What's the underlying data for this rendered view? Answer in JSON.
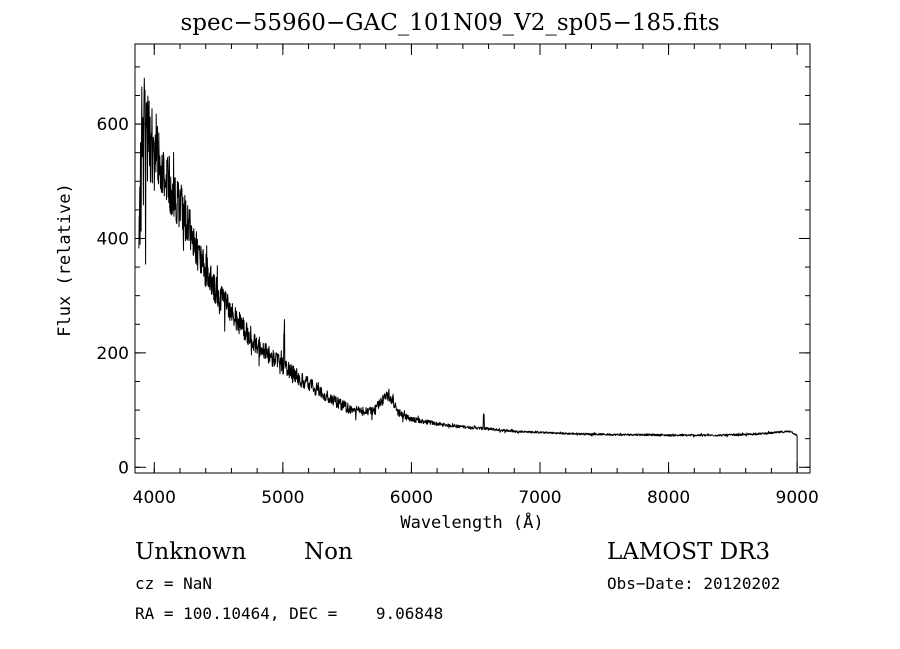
{
  "chart_data": {
    "type": "line",
    "title": "spec−55960−GAC_101N09_V2_sp05−185.fits",
    "xlabel": "Wavelength (Å)",
    "ylabel": "Flux (relative)",
    "xlim": [
      3850,
      9100
    ],
    "ylim": [
      -10,
      740
    ],
    "x_major_ticks": [
      4000,
      5000,
      6000,
      7000,
      8000,
      9000
    ],
    "x_minor_step": 200,
    "y_major_ticks": [
      0,
      200,
      400,
      600
    ],
    "y_minor_step": 50,
    "grid": false,
    "series": [
      {
        "color": "#000000",
        "x": [
          3880,
          3900,
          3920,
          3940,
          3960,
          3980,
          4000,
          4020,
          4050,
          4080,
          4100,
          4150,
          4200,
          4250,
          4300,
          4350,
          4400,
          4450,
          4500,
          4550,
          4600,
          4650,
          4700,
          4750,
          4800,
          4850,
          4900,
          4950,
          5000,
          5050,
          5100,
          5150,
          5200,
          5250,
          5300,
          5350,
          5400,
          5450,
          5500,
          5550,
          5600,
          5650,
          5700,
          5750,
          5800,
          5850,
          5900,
          5950,
          6000,
          6100,
          6200,
          6300,
          6400,
          6500,
          6600,
          6700,
          6800,
          6900,
          7000,
          7200,
          7400,
          7600,
          7800,
          8000,
          8200,
          8400,
          8600,
          8800,
          8950,
          9000
        ],
        "y": [
          420,
          520,
          560,
          580,
          590,
          570,
          560,
          550,
          540,
          520,
          510,
          480,
          460,
          430,
          400,
          370,
          345,
          320,
          300,
          285,
          270,
          255,
          240,
          228,
          215,
          205,
          195,
          185,
          175,
          168,
          160,
          152,
          145,
          138,
          130,
          123,
          116,
          110,
          104,
          100,
          98,
          97,
          99,
          110,
          125,
          118,
          95,
          88,
          84,
          80,
          76,
          73,
          71,
          69,
          67,
          65,
          63,
          62,
          61,
          59,
          58,
          57,
          57,
          56,
          56,
          56,
          57,
          60,
          63,
          55
        ],
        "noise": [
          60,
          140,
          150,
          130,
          120,
          110,
          100,
          90,
          80,
          70,
          60,
          55,
          55,
          50,
          45,
          40,
          38,
          35,
          32,
          30,
          28,
          26,
          25,
          24,
          22,
          22,
          21,
          20,
          20,
          19,
          18,
          17,
          16,
          15,
          14,
          13,
          12,
          12,
          11,
          11,
          10,
          10,
          10,
          10,
          12,
          10,
          8,
          7,
          6,
          5,
          4,
          3,
          3,
          3,
          3,
          3,
          2,
          2,
          2,
          2,
          2,
          2,
          2,
          2,
          2,
          2,
          2,
          2,
          2,
          2
        ]
      }
    ]
  },
  "annotations": {
    "object_class": "Unknown",
    "object_subclass": "Non",
    "survey": "LAMOST DR3",
    "redshift": "cz = NaN",
    "obs_date": "Obs−Date: 20120202",
    "coordinates": "RA = 100.10464, DEC =    9.06848"
  }
}
